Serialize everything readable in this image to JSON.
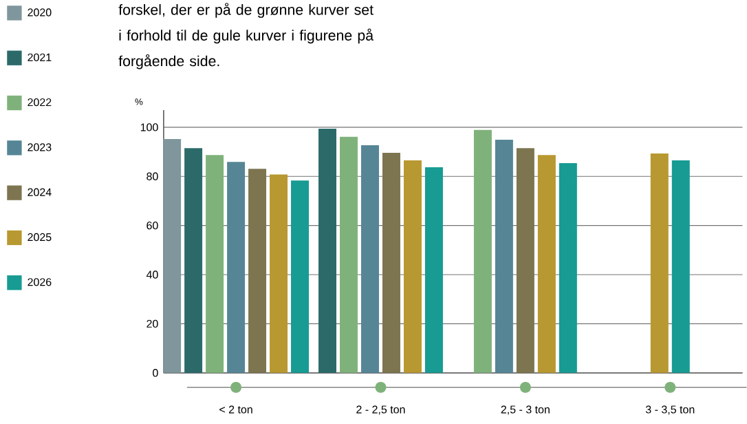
{
  "chart_data": {
    "type": "bar",
    "ylabel": "%",
    "categories": [
      "< 2 ton",
      "2 - 2,5 ton",
      "2,5 - 3 ton",
      "3 - 3,5 ton"
    ],
    "series": [
      {
        "name": "2020",
        "color": "#7f969c",
        "values": [
          95.2,
          null,
          null,
          null
        ]
      },
      {
        "name": "2021",
        "color": "#2c6a6a",
        "values": [
          91.5,
          99.4,
          null,
          null
        ]
      },
      {
        "name": "2022",
        "color": "#7fb27b",
        "values": [
          88.7,
          96.1,
          98.9,
          null
        ]
      },
      {
        "name": "2023",
        "color": "#568696",
        "values": [
          85.9,
          92.7,
          94.9,
          null
        ]
      },
      {
        "name": "2024",
        "color": "#7d7550",
        "values": [
          83.1,
          89.6,
          91.5,
          null
        ]
      },
      {
        "name": "2025",
        "color": "#b89831",
        "values": [
          80.8,
          86.5,
          88.7,
          89.3
        ]
      },
      {
        "name": "2026",
        "color": "#179b93",
        "values": [
          78.3,
          83.7,
          85.4,
          86.5
        ]
      }
    ],
    "ylim": [
      0,
      107
    ],
    "yticks": [
      0,
      20,
      40,
      60,
      80,
      100
    ],
    "grid": "y",
    "legend": "left",
    "annotations": [
      "forskel, der er på de grønne kurver set i forhold til de gule kurver i figurene på forgående side."
    ]
  }
}
